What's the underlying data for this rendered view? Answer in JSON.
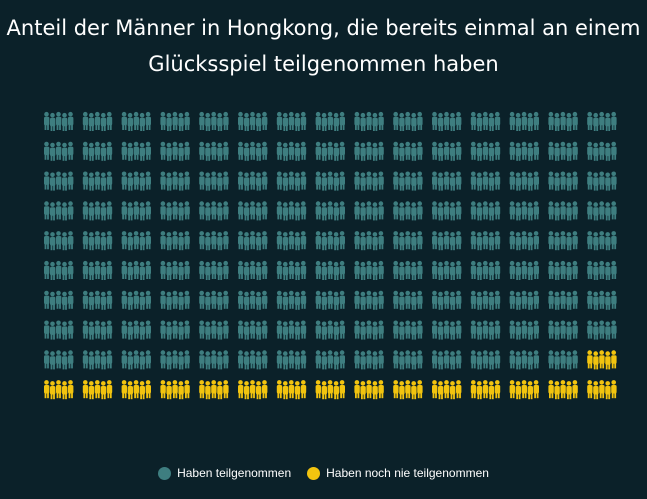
{
  "title": "Anteil der Männer in Hongkong, die bereits einmal an einem Glücksspiel teilgenommen haben",
  "colors": {
    "background": "#0b2129",
    "participated": "#3e7e80",
    "never": "#f2c40f"
  },
  "icon": "group-of-people-icon",
  "chart_data": {
    "type": "waffle",
    "title": "Anteil der Männer in Hongkong, die bereits einmal an einem Glücksspiel teilgenommen haben",
    "rows": 10,
    "columns": 15,
    "series": [
      {
        "name": "Haben teilgenommen",
        "count": 134,
        "color": "#3e7e80"
      },
      {
        "name": "Haben noch nie teilgenommen",
        "count": 16,
        "color": "#f2c40f"
      }
    ],
    "legend_position": "bottom-center"
  }
}
